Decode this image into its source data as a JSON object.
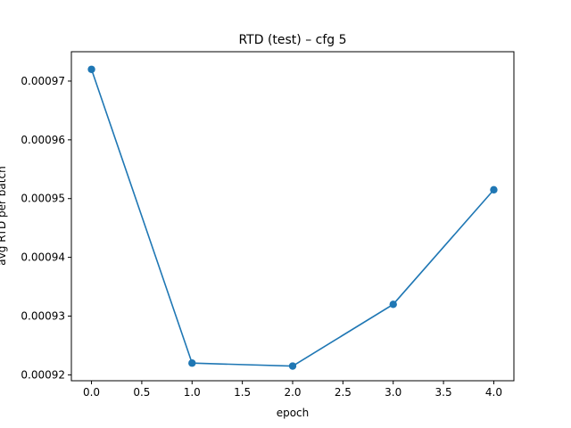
{
  "chart_data": {
    "type": "line",
    "title": "RTD (test) – cfg 5",
    "xlabel": "epoch",
    "ylabel": "avg RTD per batch",
    "x": [
      0,
      1,
      2,
      3,
      4
    ],
    "series": [
      {
        "values": [
          0.000972,
          0.000922,
          0.0009215,
          0.000932,
          0.0009515
        ],
        "color": "#1f77b4"
      }
    ],
    "xticks": [
      0.0,
      0.5,
      1.0,
      1.5,
      2.0,
      2.5,
      3.0,
      3.5,
      4.0
    ],
    "xtick_labels": [
      "0.0",
      "0.5",
      "1.0",
      "1.5",
      "2.0",
      "2.5",
      "3.0",
      "3.5",
      "4.0"
    ],
    "yticks": [
      0.00092,
      0.00093,
      0.00094,
      0.00095,
      0.00096,
      0.00097
    ],
    "ytick_labels": [
      "0.00092",
      "0.00093",
      "0.00094",
      "0.00095",
      "0.00096",
      "0.00097"
    ],
    "xlim": [
      -0.2,
      4.2
    ],
    "ylim": [
      0.000919,
      0.000975
    ],
    "grid": false,
    "legend": "none",
    "marker": "circle"
  }
}
